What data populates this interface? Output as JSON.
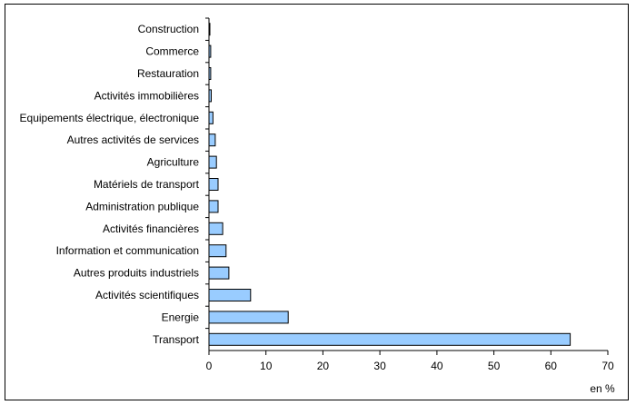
{
  "chart_data": {
    "type": "bar",
    "orientation": "horizontal",
    "title": "",
    "xlabel": "",
    "ylabel": "",
    "unit_label": "en %",
    "xlim": [
      0,
      70
    ],
    "xticks": [
      0,
      10,
      20,
      30,
      40,
      50,
      60,
      70
    ],
    "grid": false,
    "legend": "none",
    "bar_color": "#99CCFF",
    "categories": [
      "Construction",
      "Commerce",
      "Restauration",
      "Activités immobilières",
      "Equipements électrique, électronique",
      "Autres activités de services",
      "Agriculture",
      "Matériels de transport",
      "Administration publique",
      "Activités financières",
      "Information et communication",
      "Autres produits industriels",
      "Activités scientifiques",
      "Energie",
      "Transport"
    ],
    "values": [
      0.1,
      0.3,
      0.3,
      0.4,
      0.7,
      1.1,
      1.3,
      1.6,
      1.6,
      2.4,
      3.0,
      3.5,
      7.3,
      13.9,
      63.4
    ]
  }
}
